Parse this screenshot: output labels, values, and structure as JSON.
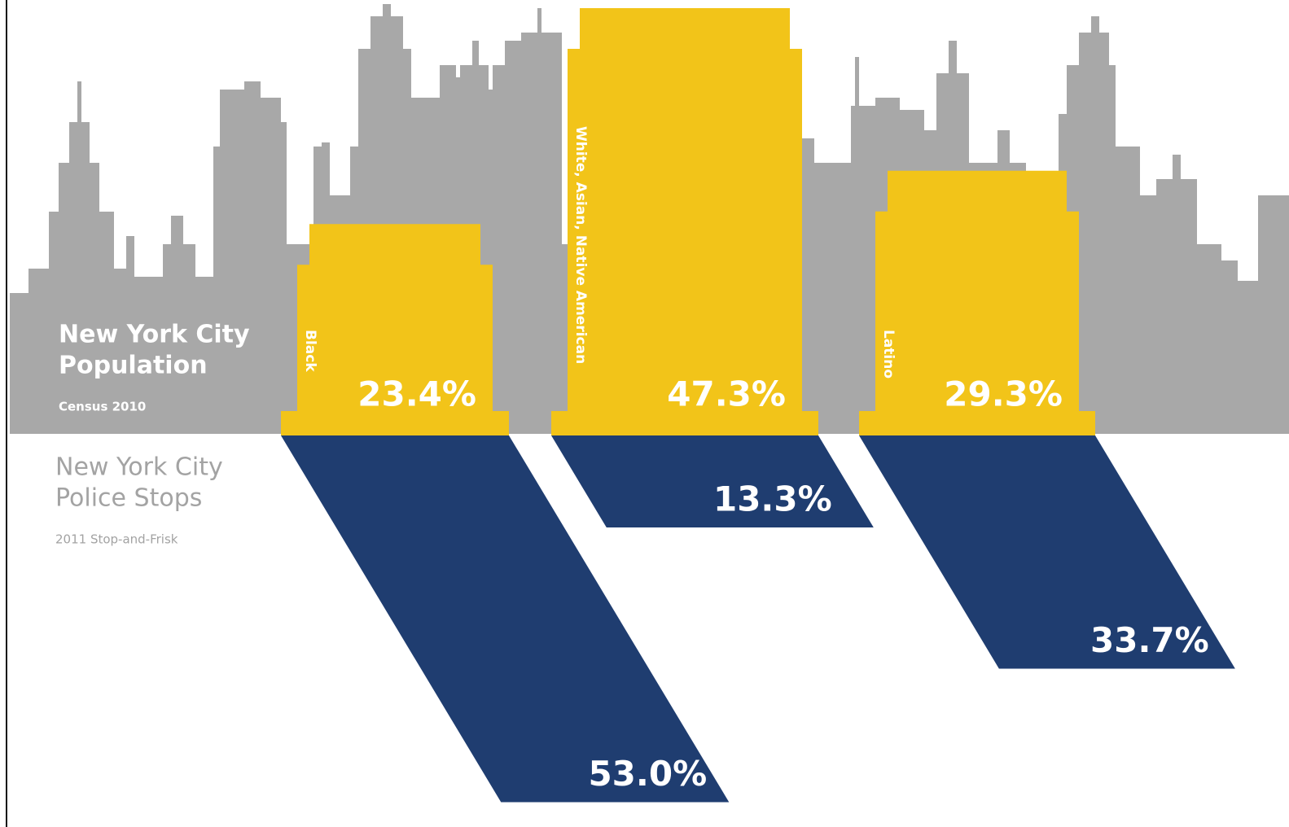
{
  "chart_data": {
    "type": "skyline",
    "categories": [
      "Black",
      "White, Asian, Native American",
      "Latino"
    ],
    "series": [
      {
        "name": [
          "New York City",
          "Population"
        ],
        "note": "Census 2010",
        "color": "#f2c419",
        "values": [
          23.4,
          47.3,
          29.3
        ],
        "value_labels": [
          "23.4%",
          "47.3%",
          "29.3%"
        ]
      },
      {
        "name": [
          "New York City",
          "Police Stops"
        ],
        "note": "2011 Stop-and-Frisk",
        "color": "#1f3d70",
        "values": [
          53,
          13.3,
          33.7
        ],
        "value_labels": [
          "53.0%",
          "13.3%",
          "33.7%"
        ]
      }
    ]
  }
}
